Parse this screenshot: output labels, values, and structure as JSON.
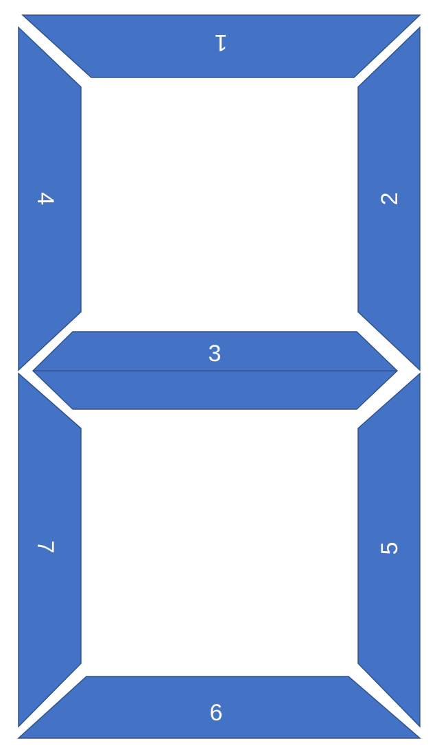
{
  "diagram": {
    "title": "",
    "segment_color": "#4472c4",
    "outline_color": "#2f528f",
    "label_color": "#ffffff",
    "segments": [
      {
        "id": "1",
        "label": "1",
        "position": "top",
        "label_orientation": "rotated-180"
      },
      {
        "id": "2",
        "label": "2",
        "position": "upper-right",
        "label_orientation": "rotated-90-ccw"
      },
      {
        "id": "3",
        "label": "3",
        "position": "middle",
        "label_orientation": "upright"
      },
      {
        "id": "4",
        "label": "4",
        "position": "upper-left",
        "label_orientation": "rotated-90-cw"
      },
      {
        "id": "5",
        "label": "5",
        "position": "lower-right",
        "label_orientation": "rotated-90-ccw"
      },
      {
        "id": "6",
        "label": "6",
        "position": "bottom",
        "label_orientation": "upright"
      },
      {
        "id": "7",
        "label": "7",
        "position": "lower-left",
        "label_orientation": "rotated-90-cw"
      }
    ]
  }
}
